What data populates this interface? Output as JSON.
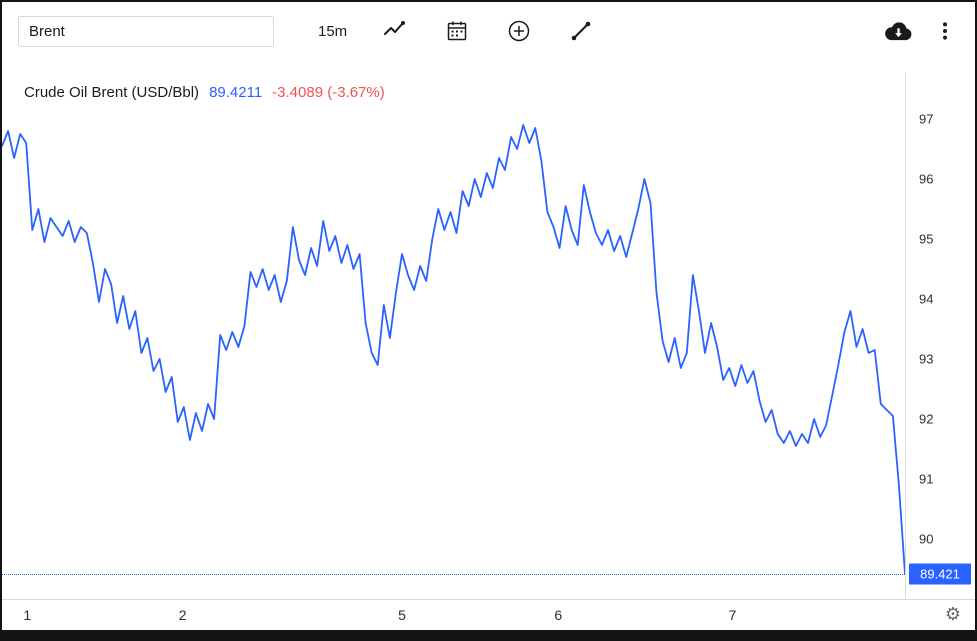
{
  "colors": {
    "accent_blue": "#2962ff",
    "negative_red": "#ef5350",
    "toolbar_icon": "#1b1b1b",
    "axis_text": "#2e2e2e",
    "axis_line": "#d9d9d9",
    "frame_border": "#131313"
  },
  "toolbar": {
    "symbol_input_value": "Brent",
    "interval_label": "15m",
    "icon_names": [
      "line-chart-icon",
      "calendar-icon",
      "plus-circle-icon",
      "trend-line-icon",
      "cloud-download-icon",
      "kebab-menu-icon"
    ]
  },
  "legend": {
    "title": "Crude Oil Brent (USD/Bbl)",
    "last": "89.4211",
    "change": "-3.4089 (-3.67%)"
  },
  "x_axis": {
    "settings_icon": "gear-icon"
  },
  "chart_data": {
    "type": "line",
    "title": "Crude Oil Brent (USD/Bbl)",
    "interval": "15m",
    "last_value": 89.4211,
    "last_label": "89.421",
    "change_value": -3.4089,
    "change_percent": "-3.67%",
    "grid": false,
    "legend_position": "top-left",
    "ylim": [
      89.0,
      97.15
    ],
    "y_ticks": [
      97,
      96,
      95,
      94,
      93,
      92,
      91,
      90
    ],
    "x_ticks": [
      {
        "label": "1",
        "pos": 0.028
      },
      {
        "label": "2",
        "pos": 0.2
      },
      {
        "label": "5",
        "pos": 0.443
      },
      {
        "label": "6",
        "pos": 0.616
      },
      {
        "label": "7",
        "pos": 0.809
      }
    ],
    "series": [
      {
        "name": "Crude Oil Brent (USD/Bbl)",
        "color": "#2962ff",
        "values": [
          96.55,
          96.8,
          96.35,
          96.75,
          96.6,
          95.15,
          95.5,
          94.95,
          95.35,
          95.2,
          95.05,
          95.3,
          94.95,
          95.2,
          95.1,
          94.6,
          93.95,
          94.5,
          94.25,
          93.6,
          94.05,
          93.5,
          93.8,
          93.1,
          93.35,
          92.8,
          93.0,
          92.45,
          92.7,
          91.95,
          92.2,
          91.65,
          92.1,
          91.8,
          92.25,
          92.0,
          93.4,
          93.15,
          93.45,
          93.2,
          93.55,
          94.45,
          94.2,
          94.5,
          94.15,
          94.4,
          93.95,
          94.3,
          95.2,
          94.65,
          94.4,
          94.85,
          94.55,
          95.3,
          94.8,
          95.05,
          94.6,
          94.9,
          94.5,
          94.75,
          93.6,
          93.1,
          92.9,
          93.9,
          93.35,
          94.1,
          94.75,
          94.4,
          94.15,
          94.55,
          94.3,
          95.0,
          95.5,
          95.15,
          95.45,
          95.1,
          95.8,
          95.55,
          96.0,
          95.7,
          96.1,
          95.85,
          96.35,
          96.15,
          96.7,
          96.5,
          96.9,
          96.6,
          96.85,
          96.3,
          95.45,
          95.2,
          94.85,
          95.55,
          95.15,
          94.9,
          95.9,
          95.45,
          95.1,
          94.9,
          95.15,
          94.8,
          95.05,
          94.7,
          95.1,
          95.5,
          96.0,
          95.6,
          94.1,
          93.3,
          92.95,
          93.35,
          92.85,
          93.1,
          94.4,
          93.8,
          93.1,
          93.6,
          93.2,
          92.65,
          92.85,
          92.55,
          92.9,
          92.6,
          92.8,
          92.3,
          91.95,
          92.15,
          91.75,
          91.6,
          91.8,
          91.55,
          91.75,
          91.6,
          92.0,
          91.7,
          91.9,
          92.4,
          92.9,
          93.45,
          93.8,
          93.2,
          93.5,
          93.1,
          93.15,
          92.25,
          92.15,
          92.05,
          90.9,
          89.42
        ]
      }
    ]
  }
}
